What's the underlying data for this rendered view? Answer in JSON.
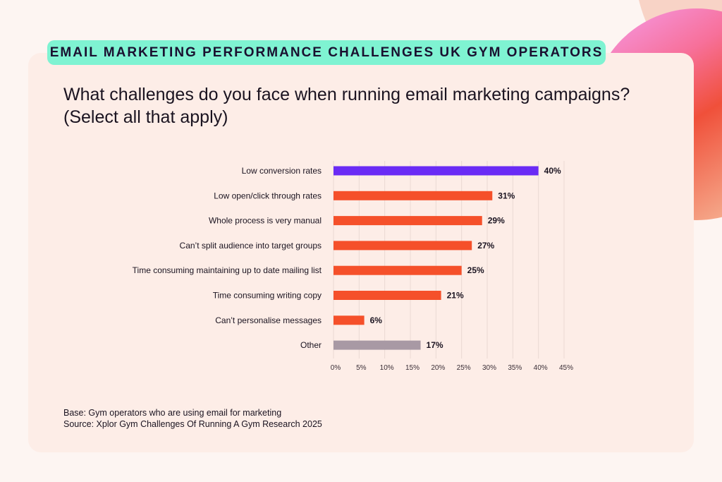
{
  "header": {
    "badge": "EMAIL MARKETING PERFORMANCE CHALLENGES UK GYM OPERATORS"
  },
  "chart_data": {
    "type": "bar",
    "orientation": "horizontal",
    "title": "What challenges do you face when running email marketing campaigns? (Select all that apply)",
    "categories": [
      "Low conversion rates",
      "Low open/click through rates",
      "Whole process is very manual",
      "Can’t split audience into target groups",
      "Time consuming maintaining up to date mailing list",
      "Time consuming writing copy",
      "Can’t personalise messages",
      "Other"
    ],
    "values": [
      40,
      31,
      29,
      27,
      25,
      21,
      6,
      17
    ],
    "data_labels": [
      "40%",
      "31%",
      "29%",
      "27%",
      "25%",
      "21%",
      "6%",
      "17%"
    ],
    "bar_colors": [
      "#6a2bf5",
      "#f5502a",
      "#f5502a",
      "#f5502a",
      "#f5502a",
      "#f5502a",
      "#f5502a",
      "#a899a4"
    ],
    "xlim": [
      0,
      45
    ],
    "xticks": [
      "0%",
      "5%",
      "10%",
      "15%",
      "20%",
      "25%",
      "30%",
      "35%",
      "40%",
      "45%"
    ],
    "grid": true
  },
  "footer": {
    "base": "Base: Gym operators who are using email for marketing",
    "source": "Source: Xplor Gym Challenges Of Running A Gym Research 2025"
  }
}
